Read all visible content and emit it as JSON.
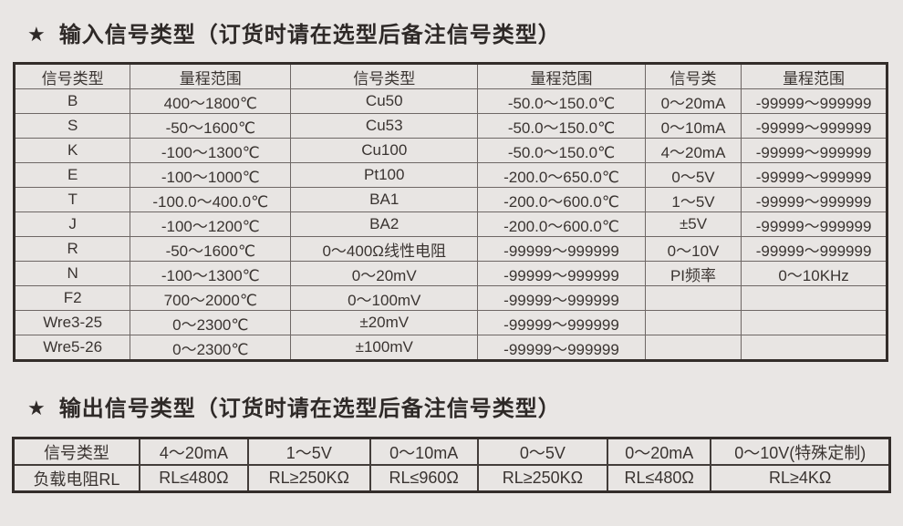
{
  "page": {
    "background": "#e9e6e4",
    "text_color": "#3a3431",
    "border_dark": "#332d2a",
    "border_light": "#6e6765"
  },
  "input_section": {
    "star": "★",
    "title": "输入信号类型（订货时请在选型后备注信号类型）",
    "table": {
      "headers": [
        "信号类型",
        "量程范围",
        "信号类型",
        "量程范围",
        "信号类",
        "量程范围"
      ],
      "rows": [
        [
          "B",
          "400～1800℃",
          "Cu50",
          "-50.0～150.0℃",
          "0～20mA",
          "-99999～999999"
        ],
        [
          "S",
          "-50～1600℃",
          "Cu53",
          "-50.0～150.0℃",
          "0～10mA",
          "-99999～999999"
        ],
        [
          "K",
          "-100～1300℃",
          "Cu100",
          "-50.0～150.0℃",
          "4～20mA",
          "-99999～999999"
        ],
        [
          "E",
          "-100～1000℃",
          "Pt100",
          "-200.0～650.0℃",
          "0～5V",
          "-99999～999999"
        ],
        [
          "T",
          "-100.0～400.0℃",
          "BA1",
          "-200.0～600.0℃",
          "1～5V",
          "-99999～999999"
        ],
        [
          "J",
          "-100～1200℃",
          "BA2",
          "-200.0～600.0℃",
          "±5V",
          "-99999～999999"
        ],
        [
          "R",
          "-50～1600℃",
          "0～400Ω线性电阻",
          "-99999～999999",
          "0～10V",
          "-99999～999999"
        ],
        [
          "N",
          "-100～1300℃",
          "0～20mV",
          "-99999～999999",
          "PI频率",
          "0～10KHz"
        ],
        [
          "F2",
          "700～2000℃",
          "0～100mV",
          "-99999～999999",
          "",
          ""
        ],
        [
          "Wre3-25",
          "0～2300℃",
          "±20mV",
          "-99999～999999",
          "",
          ""
        ],
        [
          "Wre5-26",
          "0～2300℃",
          "±100mV",
          "-99999～999999",
          "",
          ""
        ]
      ]
    }
  },
  "output_section": {
    "star": "★",
    "title": "输出信号类型（订货时请在选型后备注信号类型）",
    "table": {
      "headers": [
        "信号类型",
        "4～20mA",
        "1～5V",
        "0～10mA",
        "0～5V",
        "0～20mA",
        "0～10V(特殊定制)"
      ],
      "rows": [
        [
          "负载电阻RL",
          "RL≤480Ω",
          "RL≥250KΩ",
          "RL≤960Ω",
          "RL≥250KΩ",
          "RL≤480Ω",
          "RL≥4KΩ"
        ]
      ]
    }
  }
}
